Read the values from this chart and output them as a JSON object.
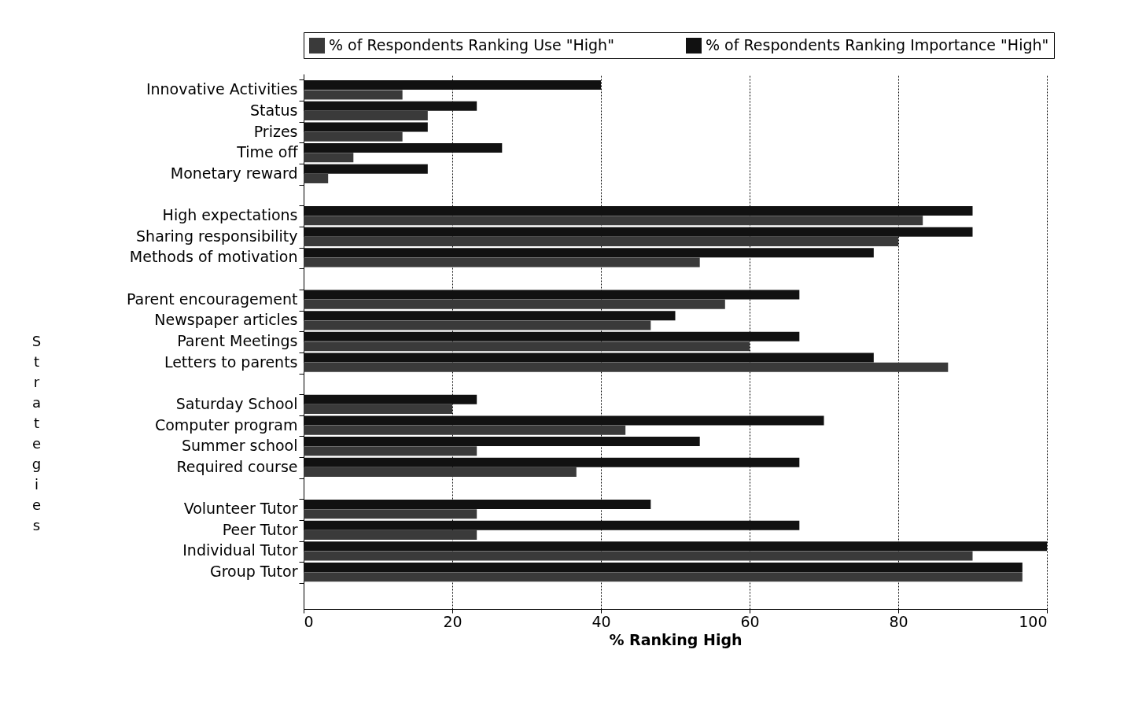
{
  "chart_data": {
    "type": "bar",
    "orientation": "horizontal",
    "xlabel": "% Ranking High",
    "ylabel": "Strategies",
    "categories": [
      "Innovative Activities",
      "Status",
      "Prizes",
      "Time off",
      "Monetary reward",
      null,
      "High expectations",
      "Sharing responsibility",
      "Methods of motivation",
      null,
      "Parent encouragement",
      "Newspaper articles",
      "Parent Meetings",
      "Letters to parents",
      null,
      "Saturday School",
      "Computer program",
      "Summer school",
      "Required course",
      null,
      "Volunteer Tutor",
      "Peer Tutor",
      "Individual Tutor",
      "Group Tutor",
      null
    ],
    "series": [
      {
        "name": "% of Respondents Ranking Use \"High\"",
        "color": "#3a3a3a",
        "values": [
          13.3,
          16.7,
          13.3,
          6.7,
          3.3,
          null,
          83.3,
          80,
          53.3,
          null,
          56.7,
          46.7,
          60,
          86.7,
          null,
          20,
          43.3,
          23.3,
          36.7,
          null,
          23.3,
          23.3,
          90,
          96.7,
          null
        ]
      },
      {
        "name": "% of Respondents Ranking Importance \"High\"",
        "color": "#111111",
        "values": [
          40,
          23.3,
          16.7,
          26.7,
          16.7,
          null,
          90,
          90,
          76.7,
          null,
          66.7,
          50,
          66.7,
          76.7,
          null,
          23.3,
          70,
          53.3,
          66.7,
          null,
          46.7,
          66.7,
          100,
          96.7,
          null
        ]
      }
    ],
    "xlim": [
      0,
      100
    ],
    "xticks": [
      0,
      20,
      40,
      60,
      80,
      100
    ],
    "grid": "x",
    "legend": "top"
  }
}
